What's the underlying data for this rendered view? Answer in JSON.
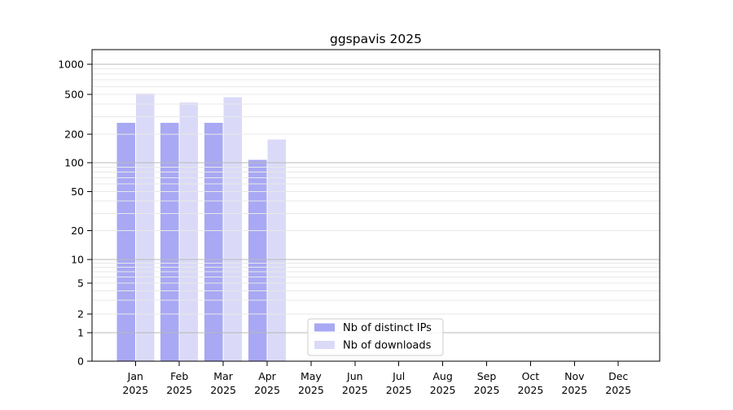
{
  "chart_data": {
    "type": "bar",
    "title": "ggspavis 2025",
    "categories": [
      {
        "month": "Jan",
        "year": "2025"
      },
      {
        "month": "Feb",
        "year": "2025"
      },
      {
        "month": "Mar",
        "year": "2025"
      },
      {
        "month": "Apr",
        "year": "2025"
      },
      {
        "month": "May",
        "year": "2025"
      },
      {
        "month": "Jun",
        "year": "2025"
      },
      {
        "month": "Jul",
        "year": "2025"
      },
      {
        "month": "Aug",
        "year": "2025"
      },
      {
        "month": "Sep",
        "year": "2025"
      },
      {
        "month": "Oct",
        "year": "2025"
      },
      {
        "month": "Nov",
        "year": "2025"
      },
      {
        "month": "Dec",
        "year": "2025"
      }
    ],
    "series": [
      {
        "name": "Nb of distinct IPs",
        "color": "#a8a8f4",
        "values": [
          260,
          260,
          260,
          107,
          0,
          0,
          0,
          0,
          0,
          0,
          0,
          0
        ]
      },
      {
        "name": "Nb of downloads",
        "color": "#dadaf8",
        "values": [
          510,
          415,
          470,
          175,
          0,
          0,
          0,
          0,
          0,
          0,
          0,
          0
        ]
      }
    ],
    "yticks": [
      0,
      1,
      2,
      5,
      10,
      20,
      50,
      100,
      200,
      500,
      1000
    ],
    "yscale": "pseudo-log",
    "ylim": [
      0,
      1500
    ],
    "grid": "horizontal, drawn above bars; darker lines at 1, 10, 100, 1000",
    "legend_position": "inside plot, bottom center"
  },
  "colors": {
    "background": "#ffffff",
    "axis": "#000000",
    "grid_major": "#b9b9b9",
    "grid_minor": "#e8e8e8",
    "legend_border": "#cccccc"
  }
}
